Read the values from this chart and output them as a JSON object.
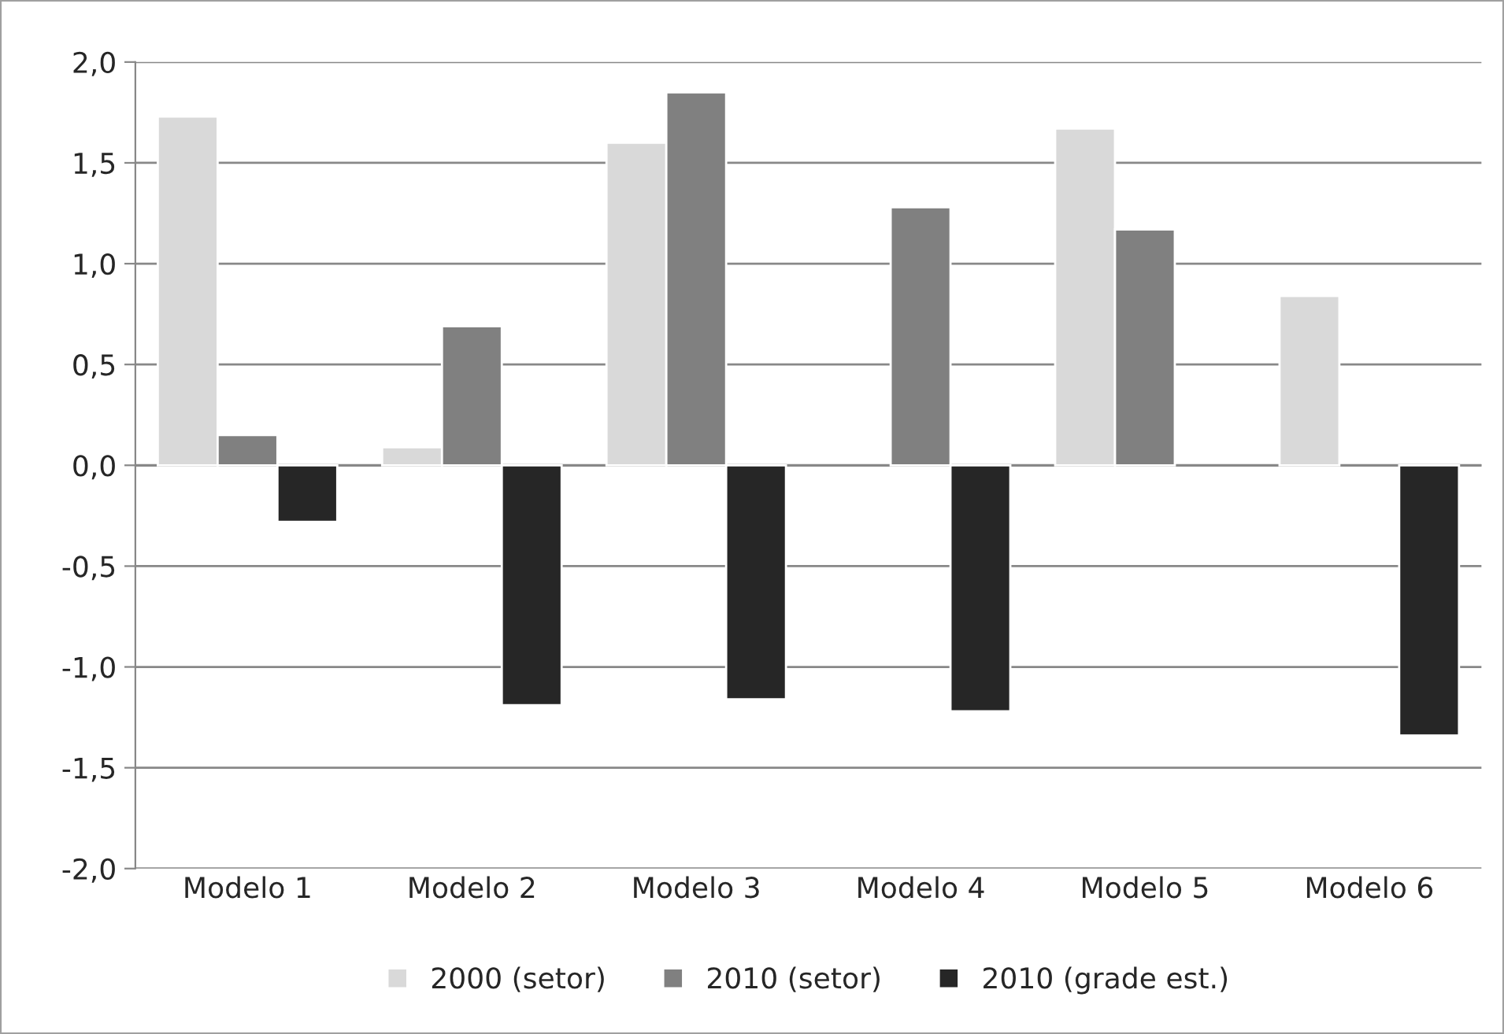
{
  "chart_data": {
    "type": "bar",
    "categories": [
      "Modelo 1",
      "Modelo 2",
      "Modelo 3",
      "Modelo 4",
      "Modelo 5",
      "Modelo 6"
    ],
    "series": [
      {
        "name": "2000 (setor)",
        "color": "#d9d9d9",
        "values": [
          1.73,
          0.09,
          1.6,
          null,
          1.67,
          0.84
        ]
      },
      {
        "name": "2010 (setor)",
        "color": "#808080",
        "values": [
          0.15,
          0.69,
          1.85,
          1.28,
          1.17,
          null
        ]
      },
      {
        "name": "2010 (grade est.)",
        "color": "#262626",
        "values": [
          -0.28,
          -1.19,
          -1.16,
          -1.22,
          null,
          -1.34
        ]
      }
    ],
    "ylim": [
      -2,
      2
    ],
    "yticks": [
      {
        "value": -2,
        "label": "-2,0"
      },
      {
        "value": -1.5,
        "label": "-1,5"
      },
      {
        "value": -1,
        "label": "-1,0"
      },
      {
        "value": -0.5,
        "label": "-0,5"
      },
      {
        "value": 0,
        "label": "0,0"
      },
      {
        "value": 0.5,
        "label": "0,5"
      },
      {
        "value": 1,
        "label": "1,0"
      },
      {
        "value": 1.5,
        "label": "1,5"
      },
      {
        "value": 2,
        "label": "2,0"
      }
    ],
    "grid": "y",
    "legend": "bottom"
  }
}
